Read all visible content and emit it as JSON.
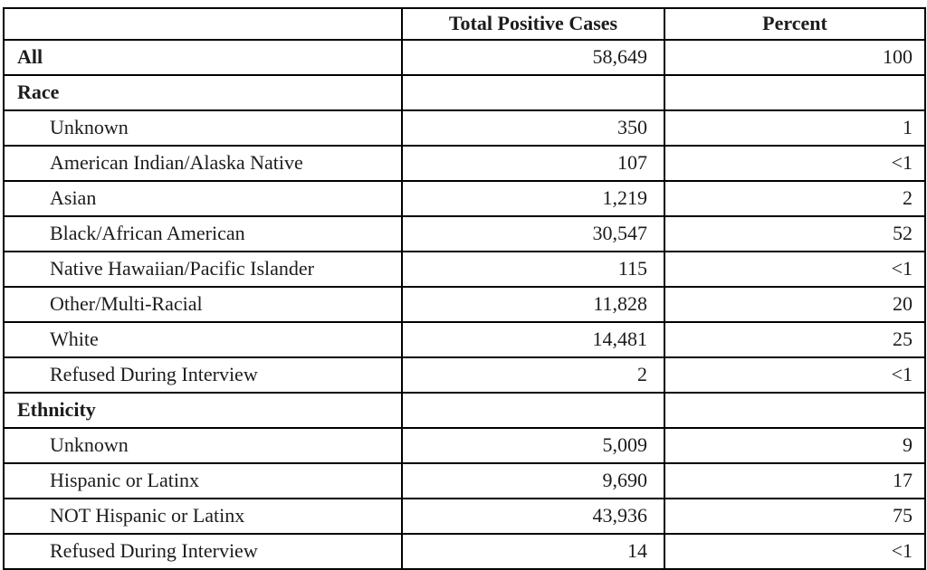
{
  "table": {
    "columns": [
      "",
      "Total Positive Cases",
      "Percent"
    ],
    "rows": [
      {
        "label": "All",
        "bold": true,
        "indent": false,
        "cases": "58,649",
        "percent": "100"
      },
      {
        "label": "Race",
        "bold": true,
        "indent": false,
        "cases": "",
        "percent": ""
      },
      {
        "label": "Unknown",
        "bold": false,
        "indent": true,
        "cases": "350",
        "percent": "1"
      },
      {
        "label": "American Indian/Alaska Native",
        "bold": false,
        "indent": true,
        "cases": "107",
        "percent": "<1"
      },
      {
        "label": "Asian",
        "bold": false,
        "indent": true,
        "cases": "1,219",
        "percent": "2"
      },
      {
        "label": "Black/African American",
        "bold": false,
        "indent": true,
        "cases": "30,547",
        "percent": "52"
      },
      {
        "label": "Native Hawaiian/Pacific Islander",
        "bold": false,
        "indent": true,
        "cases": "115",
        "percent": "<1"
      },
      {
        "label": "Other/Multi-Racial",
        "bold": false,
        "indent": true,
        "cases": "11,828",
        "percent": "20"
      },
      {
        "label": "White",
        "bold": false,
        "indent": true,
        "cases": "14,481",
        "percent": "25"
      },
      {
        "label": "Refused During Interview",
        "bold": false,
        "indent": true,
        "cases": "2",
        "percent": "<1"
      },
      {
        "label": "Ethnicity",
        "bold": true,
        "indent": false,
        "cases": "",
        "percent": ""
      },
      {
        "label": "Unknown",
        "bold": false,
        "indent": true,
        "cases": "5,009",
        "percent": "9"
      },
      {
        "label": "Hispanic or Latinx",
        "bold": false,
        "indent": true,
        "cases": "9,690",
        "percent": "17"
      },
      {
        "label": "NOT Hispanic or Latinx",
        "bold": false,
        "indent": true,
        "cases": "43,936",
        "percent": "75"
      },
      {
        "label": "Refused During Interview",
        "bold": false,
        "indent": true,
        "cases": "14",
        "percent": "<1"
      }
    ],
    "colors": {
      "border": "#000000",
      "text": "#1c1c1c",
      "background": "#ffffff"
    }
  }
}
